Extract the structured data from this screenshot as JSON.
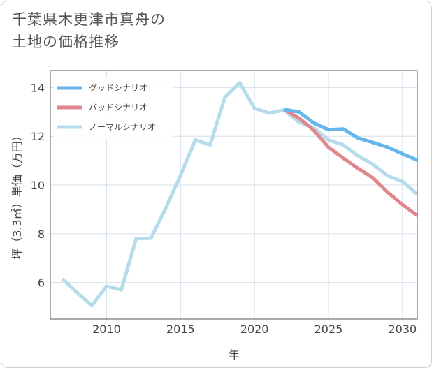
{
  "title_lines": [
    "千葉県木更津市真舟の",
    "土地の価格推移"
  ],
  "chart_data": {
    "type": "line",
    "xlabel": "年",
    "ylabel": "坪（3.3㎡）単価（万円）",
    "xlim": [
      2006.2,
      2031
    ],
    "ylim": [
      4.5,
      14.7
    ],
    "x_ticks": [
      2010,
      2015,
      2020,
      2025,
      2030
    ],
    "y_ticks": [
      6,
      8,
      10,
      12,
      14
    ],
    "grid": true,
    "legend_position": "top-left",
    "series": [
      {
        "name": "グッドシナリオ",
        "color": "#66b5ec",
        "x": [
          2022,
          2023,
          2024,
          2025,
          2026,
          2027,
          2028,
          2029,
          2030,
          2031
        ],
        "values": [
          13.1,
          13.0,
          12.55,
          12.27,
          12.3,
          11.93,
          11.75,
          11.55,
          11.28,
          11.02
        ]
      },
      {
        "name": "バッドシナリオ",
        "color": "#e0878e",
        "x": [
          2022,
          2023,
          2024,
          2025,
          2026,
          2027,
          2028,
          2029,
          2030,
          2031
        ],
        "values": [
          13.1,
          12.75,
          12.25,
          11.55,
          11.1,
          10.68,
          10.3,
          9.7,
          9.2,
          8.75
        ]
      },
      {
        "name": "ノーマルシナリオ",
        "color": "#b6dcec",
        "x": [
          2007,
          2008,
          2009,
          2010,
          2011,
          2012,
          2013,
          2014,
          2015,
          2016,
          2017,
          2018,
          2019,
          2020,
          2021,
          2022,
          2023,
          2024,
          2025,
          2026,
          2027,
          2028,
          2029,
          2030,
          2031
        ],
        "values": [
          6.15,
          5.6,
          5.05,
          5.85,
          5.7,
          7.8,
          7.82,
          9.05,
          10.4,
          11.85,
          11.65,
          13.6,
          14.2,
          13.15,
          12.95,
          13.08,
          12.58,
          12.35,
          11.85,
          11.65,
          11.2,
          10.85,
          10.38,
          10.15,
          9.62
        ]
      }
    ]
  }
}
